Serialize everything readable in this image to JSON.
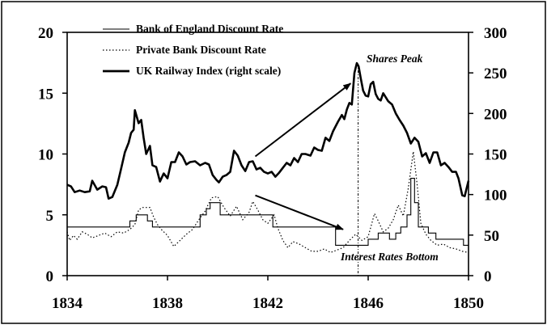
{
  "chart_data": {
    "type": "line",
    "title": "",
    "xlabel": "",
    "ylabel": "",
    "xlim": [
      1834,
      1850
    ],
    "ylim": [
      0,
      20
    ],
    "y2lim": [
      0,
      300
    ],
    "grid": false,
    "legend_position": "top-left",
    "x_ticks": [
      "1834",
      "1838",
      "1842",
      "1846",
      "1850"
    ],
    "y_ticks_left": [
      "0",
      "5",
      "10",
      "15",
      "20"
    ],
    "y_ticks_right": [
      "0",
      "50",
      "100",
      "150",
      "200",
      "250",
      "300"
    ],
    "series": [
      {
        "name": "Bank of England Discount Rate",
        "axis": "left",
        "style": "solid-thin",
        "points": [
          [
            1834.0,
            4.0
          ],
          [
            1836.5,
            4.0
          ],
          [
            1836.5,
            4.5
          ],
          [
            1836.75,
            4.5
          ],
          [
            1836.75,
            5.0
          ],
          [
            1837.2,
            5.0
          ],
          [
            1837.2,
            4.5
          ],
          [
            1837.4,
            4.5
          ],
          [
            1837.4,
            4.0
          ],
          [
            1839.3,
            4.0
          ],
          [
            1839.3,
            5.0
          ],
          [
            1839.55,
            5.0
          ],
          [
            1839.55,
            5.5
          ],
          [
            1839.7,
            5.5
          ],
          [
            1839.7,
            6.0
          ],
          [
            1840.1,
            6.0
          ],
          [
            1840.1,
            5.0
          ],
          [
            1842.2,
            5.0
          ],
          [
            1842.2,
            4.0
          ],
          [
            1844.7,
            4.0
          ],
          [
            1844.7,
            2.5
          ],
          [
            1846.0,
            2.5
          ],
          [
            1846.0,
            3.0
          ],
          [
            1846.4,
            3.0
          ],
          [
            1846.4,
            3.5
          ],
          [
            1846.85,
            3.5
          ],
          [
            1846.85,
            3.0
          ],
          [
            1847.1,
            3.0
          ],
          [
            1847.1,
            3.5
          ],
          [
            1847.3,
            3.5
          ],
          [
            1847.3,
            4.0
          ],
          [
            1847.55,
            4.0
          ],
          [
            1847.55,
            5.0
          ],
          [
            1847.7,
            5.0
          ],
          [
            1847.7,
            8.0
          ],
          [
            1847.85,
            8.0
          ],
          [
            1847.85,
            6.0
          ],
          [
            1848.0,
            6.0
          ],
          [
            1848.0,
            4.0
          ],
          [
            1848.4,
            4.0
          ],
          [
            1848.4,
            3.5
          ],
          [
            1848.7,
            3.5
          ],
          [
            1848.7,
            3.0
          ],
          [
            1849.8,
            3.0
          ],
          [
            1849.8,
            2.5
          ],
          [
            1850.0,
            2.5
          ]
        ]
      },
      {
        "name": "Private Bank Discount Rate",
        "axis": "left",
        "style": "dotted",
        "points": [
          [
            1834.0,
            3.6
          ],
          [
            1834.1,
            2.9
          ],
          [
            1834.25,
            3.3
          ],
          [
            1834.4,
            3.0
          ],
          [
            1834.6,
            3.6
          ],
          [
            1834.8,
            3.4
          ],
          [
            1835.0,
            3.1
          ],
          [
            1835.25,
            3.3
          ],
          [
            1835.5,
            3.5
          ],
          [
            1835.75,
            3.2
          ],
          [
            1836.0,
            3.6
          ],
          [
            1836.25,
            3.5
          ],
          [
            1836.5,
            3.8
          ],
          [
            1836.7,
            4.2
          ],
          [
            1836.85,
            5.4
          ],
          [
            1837.0,
            5.6
          ],
          [
            1837.3,
            5.6
          ],
          [
            1837.45,
            4.8
          ],
          [
            1837.6,
            4.2
          ],
          [
            1837.75,
            3.8
          ],
          [
            1838.0,
            3.3
          ],
          [
            1838.25,
            2.4
          ],
          [
            1838.5,
            2.9
          ],
          [
            1838.75,
            3.4
          ],
          [
            1839.0,
            3.8
          ],
          [
            1839.25,
            4.6
          ],
          [
            1839.5,
            5.3
          ],
          [
            1839.75,
            6.4
          ],
          [
            1840.0,
            6.5
          ],
          [
            1840.25,
            5.6
          ],
          [
            1840.5,
            4.9
          ],
          [
            1840.75,
            5.7
          ],
          [
            1841.0,
            4.6
          ],
          [
            1841.25,
            5.2
          ],
          [
            1841.4,
            6.1
          ],
          [
            1841.6,
            5.4
          ],
          [
            1841.8,
            4.6
          ],
          [
            1842.0,
            4.3
          ],
          [
            1842.25,
            5.0
          ],
          [
            1842.4,
            3.9
          ],
          [
            1842.6,
            2.9
          ],
          [
            1842.8,
            2.3
          ],
          [
            1843.0,
            2.8
          ],
          [
            1843.25,
            2.6
          ],
          [
            1843.5,
            2.3
          ],
          [
            1843.75,
            2.0
          ],
          [
            1844.0,
            2.0
          ],
          [
            1844.25,
            2.2
          ],
          [
            1844.5,
            1.9
          ],
          [
            1844.75,
            2.1
          ],
          [
            1845.0,
            2.3
          ],
          [
            1845.25,
            2.9
          ],
          [
            1845.5,
            3.4
          ],
          [
            1845.75,
            2.9
          ],
          [
            1846.0,
            3.2
          ],
          [
            1846.25,
            5.1
          ],
          [
            1846.4,
            4.5
          ],
          [
            1846.6,
            3.6
          ],
          [
            1846.8,
            3.9
          ],
          [
            1847.0,
            4.6
          ],
          [
            1847.2,
            5.8
          ],
          [
            1847.4,
            4.9
          ],
          [
            1847.6,
            7.2
          ],
          [
            1847.8,
            10.2
          ],
          [
            1847.95,
            7.5
          ],
          [
            1848.1,
            4.3
          ],
          [
            1848.3,
            3.4
          ],
          [
            1848.5,
            2.9
          ],
          [
            1848.75,
            2.5
          ],
          [
            1849.0,
            2.6
          ],
          [
            1849.25,
            2.3
          ],
          [
            1849.5,
            2.2
          ],
          [
            1849.75,
            2.0
          ],
          [
            1850.0,
            1.9
          ]
        ]
      },
      {
        "name": "UK Railway Index (right scale)",
        "axis": "right",
        "style": "solid-thick",
        "points": [
          [
            1834.0,
            112
          ],
          [
            1834.15,
            110
          ],
          [
            1834.3,
            103
          ],
          [
            1834.5,
            105
          ],
          [
            1834.7,
            103
          ],
          [
            1834.9,
            104
          ],
          [
            1835.0,
            117
          ],
          [
            1835.2,
            106
          ],
          [
            1835.4,
            110
          ],
          [
            1835.55,
            109
          ],
          [
            1835.65,
            95
          ],
          [
            1835.8,
            97
          ],
          [
            1836.0,
            112
          ],
          [
            1836.15,
            132
          ],
          [
            1836.3,
            152
          ],
          [
            1836.45,
            164
          ],
          [
            1836.55,
            176
          ],
          [
            1836.65,
            180
          ],
          [
            1836.7,
            204
          ],
          [
            1836.85,
            188
          ],
          [
            1836.95,
            192
          ],
          [
            1837.05,
            170
          ],
          [
            1837.15,
            150
          ],
          [
            1837.3,
            160
          ],
          [
            1837.4,
            136
          ],
          [
            1837.55,
            134
          ],
          [
            1837.7,
            116
          ],
          [
            1837.85,
            126
          ],
          [
            1838.0,
            120
          ],
          [
            1838.15,
            140
          ],
          [
            1838.3,
            140
          ],
          [
            1838.45,
            152
          ],
          [
            1838.6,
            147
          ],
          [
            1838.75,
            137
          ],
          [
            1838.9,
            140
          ],
          [
            1839.1,
            141
          ],
          [
            1839.3,
            136
          ],
          [
            1839.5,
            139
          ],
          [
            1839.65,
            137
          ],
          [
            1839.8,
            124
          ],
          [
            1839.95,
            118
          ],
          [
            1840.05,
            115
          ],
          [
            1840.2,
            122
          ],
          [
            1840.35,
            124
          ],
          [
            1840.5,
            128
          ],
          [
            1840.65,
            154
          ],
          [
            1840.8,
            148
          ],
          [
            1840.95,
            136
          ],
          [
            1841.1,
            129
          ],
          [
            1841.25,
            140
          ],
          [
            1841.4,
            141
          ],
          [
            1841.55,
            131
          ],
          [
            1841.7,
            133
          ],
          [
            1841.85,
            128
          ],
          [
            1842.0,
            126
          ],
          [
            1842.15,
            128
          ],
          [
            1842.3,
            122
          ],
          [
            1842.45,
            127
          ],
          [
            1842.6,
            133
          ],
          [
            1842.75,
            139
          ],
          [
            1842.9,
            136
          ],
          [
            1843.05,
            145
          ],
          [
            1843.2,
            140
          ],
          [
            1843.35,
            150
          ],
          [
            1843.5,
            150
          ],
          [
            1843.7,
            148
          ],
          [
            1843.85,
            158
          ],
          [
            1844.0,
            155
          ],
          [
            1844.15,
            154
          ],
          [
            1844.3,
            170
          ],
          [
            1844.45,
            166
          ],
          [
            1844.6,
            178
          ],
          [
            1844.8,
            190
          ],
          [
            1844.95,
            198
          ],
          [
            1845.05,
            193
          ],
          [
            1845.15,
            205
          ],
          [
            1845.25,
            213
          ],
          [
            1845.35,
            211
          ],
          [
            1845.45,
            250
          ],
          [
            1845.55,
            262
          ],
          [
            1845.62,
            258
          ],
          [
            1845.7,
            244
          ],
          [
            1845.8,
            228
          ],
          [
            1845.9,
            222
          ],
          [
            1846.0,
            221
          ],
          [
            1846.1,
            236
          ],
          [
            1846.2,
            239
          ],
          [
            1846.3,
            224
          ],
          [
            1846.4,
            218
          ],
          [
            1846.5,
            216
          ],
          [
            1846.6,
            225
          ],
          [
            1846.7,
            220
          ],
          [
            1846.8,
            215
          ],
          [
            1846.95,
            211
          ],
          [
            1847.1,
            200
          ],
          [
            1847.25,
            192
          ],
          [
            1847.4,
            185
          ],
          [
            1847.55,
            176
          ],
          [
            1847.7,
            163
          ],
          [
            1847.85,
            170
          ],
          [
            1848.0,
            165
          ],
          [
            1848.15,
            147
          ],
          [
            1848.3,
            151
          ],
          [
            1848.45,
            139
          ],
          [
            1848.6,
            152
          ],
          [
            1848.75,
            152
          ],
          [
            1848.9,
            136
          ],
          [
            1849.05,
            139
          ],
          [
            1849.2,
            134
          ],
          [
            1849.35,
            128
          ],
          [
            1849.5,
            128
          ],
          [
            1849.6,
            120
          ],
          [
            1849.75,
            99
          ],
          [
            1849.85,
            98
          ],
          [
            1850.0,
            117
          ]
        ]
      }
    ],
    "annotations": [
      {
        "text": "Shares Peak",
        "vertical_line_x": 1845.6,
        "arrow_from": [
          1841.5,
          9.8
        ],
        "arrow_to": [
          1845.3,
          15.8
        ]
      },
      {
        "text": "Interest Rates Bottom",
        "arrow_from": [
          1841.5,
          6.6
        ],
        "arrow_to": [
          1845.0,
          3.8
        ]
      }
    ]
  }
}
